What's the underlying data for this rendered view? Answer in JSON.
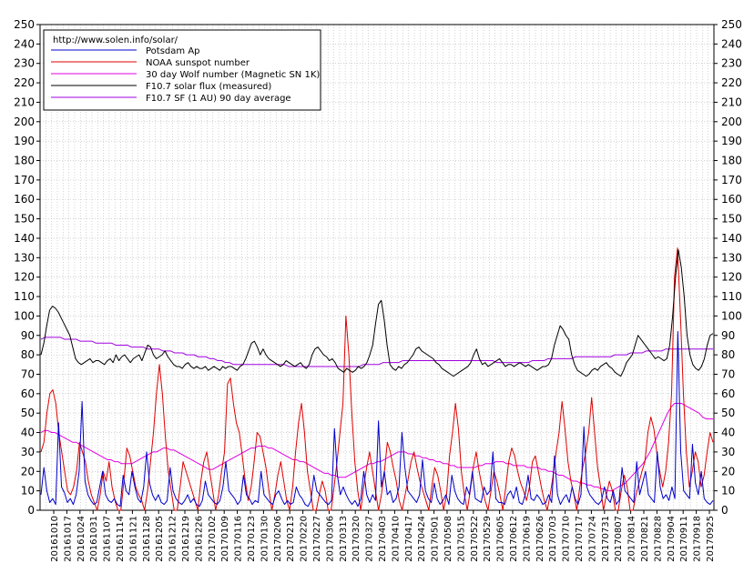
{
  "chart_data": {
    "type": "line",
    "legend_position": "top-left",
    "grid": true,
    "source_text": "http://www.solen.info/solar/",
    "ylim": [
      0,
      250
    ],
    "yticks": [
      0,
      10,
      20,
      30,
      40,
      50,
      60,
      70,
      80,
      90,
      100,
      110,
      120,
      130,
      140,
      150,
      160,
      170,
      180,
      190,
      200,
      210,
      220,
      230,
      240,
      250
    ],
    "xlabels": [
      "20161010",
      "20161017",
      "20161024",
      "20161031",
      "20161107",
      "20161114",
      "20161121",
      "20161128",
      "20161205",
      "20161212",
      "20161219",
      "20161226",
      "20170102",
      "20170109",
      "20170116",
      "20170123",
      "20170130",
      "20170206",
      "20170213",
      "20170220",
      "20170227",
      "20170306",
      "20170313",
      "20170320",
      "20170327",
      "20170403",
      "20170410",
      "20170417",
      "20170424",
      "20170501",
      "20170508",
      "20170515",
      "20170522",
      "20170529",
      "20170605",
      "20170612",
      "20170619",
      "20170626",
      "20170703",
      "20170710",
      "20170717",
      "20170724",
      "20170731",
      "20170807",
      "20170814",
      "20170821",
      "20170828",
      "20170904",
      "20170911",
      "20170918",
      "20170925"
    ],
    "series": [
      {
        "name": "Potsdam Ap",
        "color": "#0000cc",
        "values": [
          8,
          22,
          10,
          4,
          6,
          3,
          45,
          12,
          9,
          4,
          6,
          3,
          8,
          20,
          56,
          15,
          8,
          5,
          3,
          4,
          12,
          20,
          8,
          5,
          4,
          6,
          3,
          2,
          18,
          10,
          8,
          20,
          12,
          6,
          4,
          12,
          30,
          14,
          8,
          5,
          8,
          4,
          3,
          5,
          22,
          10,
          6,
          4,
          3,
          5,
          8,
          4,
          6,
          3,
          2,
          5,
          15,
          8,
          6,
          4,
          3,
          5,
          12,
          25,
          10,
          8,
          6,
          3,
          5,
          18,
          8,
          6,
          3,
          5,
          4,
          20,
          8,
          6,
          4,
          3,
          8,
          10,
          6,
          3,
          5,
          3,
          4,
          12,
          8,
          6,
          3,
          2,
          5,
          18,
          10,
          8,
          6,
          4,
          3,
          5,
          42,
          18,
          8,
          12,
          8,
          5,
          3,
          5,
          2,
          6,
          20,
          8,
          4,
          8,
          5,
          46,
          12,
          20,
          8,
          10,
          4,
          6,
          12,
          40,
          22,
          10,
          8,
          6,
          4,
          8,
          26,
          10,
          6,
          4,
          14,
          6,
          3,
          5,
          8,
          3,
          18,
          10,
          6,
          4,
          3,
          12,
          8,
          20,
          6,
          5,
          4,
          12,
          8,
          10,
          30,
          6,
          4,
          4,
          3,
          8,
          10,
          6,
          12,
          4,
          3,
          8,
          18,
          6,
          5,
          8,
          6,
          3,
          4,
          8,
          4,
          28,
          8,
          3,
          6,
          8,
          4,
          12,
          6,
          3,
          8,
          43,
          12,
          8,
          6,
          4,
          3,
          5,
          12,
          6,
          4,
          10,
          3,
          5,
          22,
          10,
          8,
          6,
          4,
          25,
          8,
          14,
          20,
          8,
          6,
          4,
          30,
          12,
          6,
          8,
          5,
          12,
          6,
          92,
          30,
          10,
          8,
          6,
          34,
          14,
          8,
          20,
          6,
          4,
          3,
          5
        ]
      },
      {
        "name": "NOAA sunspot number",
        "color": "#e00000",
        "values": [
          30,
          35,
          50,
          60,
          62,
          55,
          40,
          30,
          20,
          10,
          8,
          12,
          20,
          35,
          30,
          25,
          15,
          8,
          4,
          0,
          8,
          20,
          15,
          25,
          12,
          5,
          0,
          0,
          15,
          32,
          28,
          20,
          12,
          8,
          5,
          0,
          10,
          25,
          40,
          60,
          75,
          60,
          38,
          20,
          10,
          0,
          0,
          12,
          25,
          20,
          15,
          10,
          5,
          0,
          15,
          25,
          30,
          20,
          10,
          0,
          8,
          20,
          30,
          65,
          68,
          55,
          45,
          40,
          28,
          15,
          5,
          12,
          25,
          40,
          38,
          30,
          22,
          10,
          0,
          8,
          18,
          25,
          15,
          5,
          0,
          12,
          30,
          45,
          55,
          40,
          20,
          10,
          0,
          0,
          8,
          15,
          10,
          0,
          0,
          12,
          25,
          40,
          55,
          100,
          80,
          50,
          25,
          10,
          0,
          12,
          22,
          30,
          20,
          10,
          0,
          8,
          20,
          35,
          30,
          22,
          15,
          5,
          0,
          8,
          16,
          25,
          30,
          22,
          15,
          10,
          5,
          0,
          12,
          22,
          18,
          10,
          0,
          8,
          28,
          40,
          55,
          42,
          20,
          8,
          0,
          10,
          22,
          30,
          20,
          12,
          5,
          0,
          10,
          20,
          15,
          8,
          0,
          12,
          25,
          32,
          28,
          20,
          14,
          10,
          5,
          12,
          25,
          28,
          20,
          12,
          5,
          0,
          8,
          18,
          30,
          40,
          56,
          42,
          25,
          15,
          8,
          0,
          12,
          22,
          30,
          40,
          58,
          40,
          22,
          12,
          0,
          8,
          15,
          10,
          0,
          0,
          10,
          18,
          12,
          0,
          0,
          8,
          14,
          20,
          25,
          40,
          48,
          42,
          30,
          20,
          12,
          20,
          35,
          60,
          120,
          135,
          100,
          60,
          30,
          12,
          20,
          30,
          25,
          12,
          18,
          30,
          40,
          35
        ]
      },
      {
        "name": "30 day Wolf number (Magnetic SN 1K)",
        "color": "#e000e0",
        "values": [
          40,
          41,
          41,
          40,
          40,
          39,
          38,
          37,
          36,
          35,
          35,
          34,
          33,
          32,
          31,
          30,
          29,
          28,
          27,
          26,
          26,
          25,
          25,
          24,
          24,
          24,
          24,
          25,
          26,
          27,
          28,
          29,
          30,
          30,
          31,
          32,
          32,
          31,
          31,
          30,
          29,
          28,
          27,
          26,
          25,
          24,
          23,
          22,
          21,
          21,
          22,
          23,
          24,
          25,
          26,
          27,
          28,
          29,
          30,
          31,
          32,
          32,
          33,
          33,
          33,
          32,
          32,
          31,
          30,
          29,
          28,
          27,
          26,
          26,
          25,
          25,
          24,
          23,
          22,
          21,
          20,
          19,
          19,
          18,
          18,
          17,
          17,
          17,
          18,
          19,
          20,
          21,
          22,
          23,
          24,
          24,
          25,
          25,
          26,
          27,
          28,
          29,
          30,
          30,
          30,
          29,
          29,
          28,
          28,
          27,
          27,
          26,
          26,
          25,
          25,
          24,
          24,
          23,
          23,
          22,
          22,
          22,
          22,
          22,
          22,
          23,
          23,
          24,
          24,
          24,
          25,
          25,
          25,
          24,
          24,
          23,
          23,
          23,
          23,
          22,
          22,
          22,
          22,
          21,
          21,
          20,
          20,
          19,
          18,
          18,
          17,
          16,
          15,
          15,
          14,
          14,
          13,
          13,
          12,
          12,
          11,
          11,
          10,
          10,
          11,
          12,
          13,
          14,
          16,
          18,
          20,
          22,
          24,
          27,
          30,
          34,
          38,
          42,
          46,
          50,
          53,
          55,
          55,
          55,
          54,
          53,
          52,
          51,
          50,
          48,
          47,
          47,
          47
        ]
      },
      {
        "name": "F10.7 solar flux (measured)",
        "color": "#000000",
        "values": [
          80,
          86,
          95,
          103,
          105,
          104,
          102,
          99,
          96,
          93,
          90,
          84,
          78,
          76,
          75,
          76,
          77,
          78,
          76,
          77,
          77,
          76,
          75,
          77,
          78,
          76,
          80,
          77,
          79,
          80,
          78,
          76,
          78,
          79,
          80,
          77,
          81,
          85,
          84,
          80,
          78,
          79,
          80,
          82,
          79,
          77,
          75,
          74,
          74,
          73,
          75,
          76,
          74,
          73,
          74,
          73,
          73,
          74,
          72,
          73,
          74,
          73,
          72,
          74,
          73,
          74,
          74,
          73,
          72,
          74,
          75,
          78,
          82,
          86,
          87,
          84,
          80,
          83,
          80,
          78,
          77,
          76,
          75,
          74,
          75,
          77,
          76,
          75,
          74,
          75,
          76,
          74,
          73,
          75,
          80,
          83,
          84,
          82,
          80,
          79,
          77,
          78,
          76,
          73,
          72,
          71,
          73,
          72,
          71,
          72,
          74,
          73,
          74,
          76,
          80,
          85,
          96,
          106,
          108,
          98,
          85,
          75,
          73,
          72,
          74,
          73,
          75,
          76,
          78,
          80,
          83,
          84,
          82,
          81,
          80,
          79,
          78,
          76,
          75,
          73,
          72,
          71,
          70,
          69,
          70,
          71,
          72,
          73,
          74,
          76,
          80,
          83,
          78,
          75,
          76,
          74,
          75,
          76,
          77,
          78,
          76,
          74,
          75,
          75,
          74,
          75,
          76,
          75,
          74,
          75,
          74,
          73,
          72,
          73,
          74,
          74,
          75,
          78,
          85,
          90,
          95,
          93,
          90,
          88,
          80,
          75,
          72,
          71,
          70,
          69,
          70,
          72,
          73,
          72,
          74,
          75,
          76,
          74,
          73,
          71,
          70,
          69,
          72,
          76,
          78,
          80,
          85,
          90,
          88,
          86,
          84,
          82,
          80,
          78,
          79,
          78,
          77,
          78,
          85,
          100,
          120,
          134,
          125,
          110,
          90,
          80,
          75,
          73,
          72,
          74,
          78,
          85,
          90,
          91
        ]
      },
      {
        "name": "F10.7 SF (1 AU) 90 day average",
        "color": "#a000e0",
        "values": [
          88,
          89,
          89,
          89,
          89,
          89,
          88,
          88,
          88,
          88,
          87,
          87,
          87,
          87,
          86,
          86,
          86,
          86,
          86,
          85,
          85,
          85,
          85,
          84,
          84,
          84,
          84,
          83,
          83,
          83,
          83,
          82,
          82,
          82,
          81,
          81,
          81,
          80,
          80,
          80,
          79,
          79,
          79,
          78,
          78,
          77,
          77,
          76,
          76,
          75,
          75,
          75,
          75,
          75,
          75,
          75,
          75,
          75,
          75,
          75,
          75,
          75,
          75,
          74,
          74,
          74,
          74,
          74,
          74,
          74,
          74,
          74,
          74,
          74,
          74,
          74,
          74,
          74,
          74,
          74,
          74,
          74,
          75,
          75,
          75,
          75,
          75,
          76,
          76,
          76,
          76,
          76,
          77,
          77,
          77,
          77,
          77,
          77,
          77,
          77,
          77,
          77,
          77,
          77,
          77,
          77,
          77,
          77,
          77,
          77,
          77,
          77,
          77,
          77,
          77,
          77,
          76,
          76,
          76,
          76,
          76,
          76,
          76,
          76,
          76,
          77,
          77,
          77,
          77,
          78,
          78,
          78,
          78,
          78,
          78,
          78,
          79,
          79,
          79,
          79,
          79,
          79,
          79,
          79,
          79,
          79,
          80,
          80,
          80,
          80,
          81,
          81,
          81,
          81,
          82,
          82,
          82,
          82,
          82,
          83,
          83,
          83,
          83,
          83,
          83,
          83,
          83,
          83,
          83,
          83,
          83,
          83
        ]
      }
    ]
  }
}
